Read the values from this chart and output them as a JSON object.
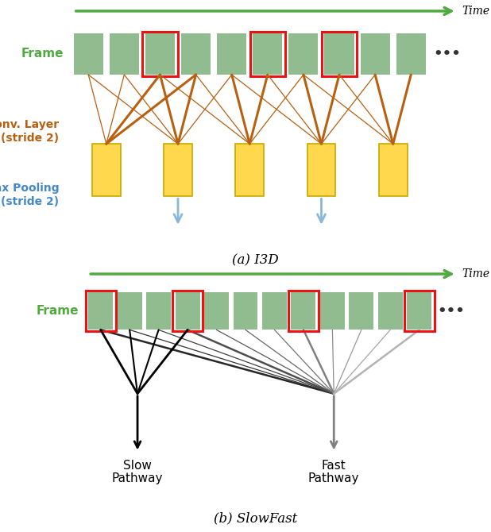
{
  "fig_width": 6.18,
  "fig_height": 6.7,
  "dpi": 100,
  "bg_color": "#ffffff",
  "green_color": "#90bc90",
  "red_color": "#ee1111",
  "yellow_color": "#ffd84d",
  "yellow_edge": "#c8a800",
  "orange_color": "#b86010",
  "blue_arrow_color": "#88b8d8",
  "arrow_green": "#50aa40",
  "time_label": "Time",
  "frame_label_a": "Frame",
  "conv_label_1": "Conv. Layer",
  "conv_label_2": "(stride 2)",
  "pool_label_1": "Max Pooling",
  "pool_label_2": "(stride 2)",
  "caption_a": "(a) I3D",
  "frame_label_b": "Frame",
  "slow_label_1": "Slow",
  "slow_label_2": "Pathway",
  "fast_label_1": "Fast",
  "fast_label_2": "Pathway",
  "caption_b": "(b) SlowFast",
  "dots": "•••"
}
